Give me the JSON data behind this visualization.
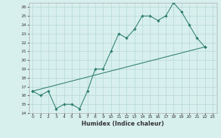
{
  "xlabel": "Humidex (Indice chaleur)",
  "ylabel": "",
  "bg_color": "#d7efed",
  "grid_color": "#b8dbd8",
  "line_color": "#2d7d6e",
  "xlim": [
    -0.5,
    23.5
  ],
  "ylim": [
    14,
    26.5
  ],
  "yticks": [
    14,
    15,
    16,
    17,
    18,
    19,
    20,
    21,
    22,
    23,
    24,
    25,
    26
  ],
  "xticks": [
    0,
    1,
    2,
    3,
    4,
    5,
    6,
    7,
    8,
    9,
    10,
    11,
    12,
    13,
    14,
    15,
    16,
    17,
    18,
    19,
    20,
    21,
    22,
    23
  ],
  "series1_x": [
    0,
    1,
    2,
    3,
    4,
    5,
    6,
    7,
    8,
    9,
    10,
    11,
    12,
    13,
    14,
    15,
    16,
    17,
    18,
    19,
    20,
    21,
    22
  ],
  "series1_y": [
    16.5,
    16.0,
    16.5,
    14.5,
    15.0,
    15.0,
    14.5,
    16.5,
    19.0,
    19.0,
    21.0,
    23.0,
    22.5,
    23.5,
    25.0,
    25.0,
    24.5,
    25.0,
    26.5,
    25.5,
    24.0,
    22.5,
    21.5
  ]
}
